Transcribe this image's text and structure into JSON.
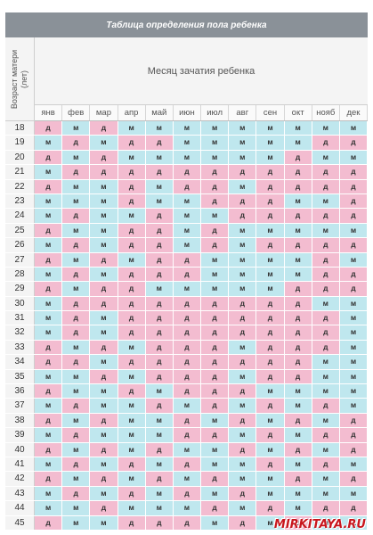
{
  "title": "Таблица определения пола ребенка",
  "vertical_label_line1": "Возраст матери",
  "vertical_label_line2": "(лет)",
  "header_label": "Месяц зачатия ребенка",
  "months": [
    "янв",
    "фев",
    "мар",
    "апр",
    "май",
    "июн",
    "июл",
    "авг",
    "сен",
    "окт",
    "нояб",
    "дек"
  ],
  "colors": {
    "boy": "#bfe7ee",
    "girl": "#f3bcd0",
    "header": "#8a9198"
  },
  "rows": [
    {
      "age": "18",
      "cells": [
        "д",
        "м",
        "д",
        "м",
        "м",
        "м",
        "м",
        "м",
        "м",
        "м",
        "м",
        "м"
      ]
    },
    {
      "age": "19",
      "cells": [
        "м",
        "д",
        "м",
        "д",
        "д",
        "м",
        "м",
        "м",
        "м",
        "м",
        "д",
        "д"
      ]
    },
    {
      "age": "20",
      "cells": [
        "д",
        "м",
        "д",
        "м",
        "м",
        "м",
        "м",
        "м",
        "м",
        "д",
        "м",
        "м"
      ]
    },
    {
      "age": "21",
      "cells": [
        "м",
        "д",
        "д",
        "д",
        "д",
        "д",
        "д",
        "д",
        "д",
        "д",
        "д",
        "д"
      ]
    },
    {
      "age": "22",
      "cells": [
        "д",
        "м",
        "м",
        "д",
        "м",
        "д",
        "д",
        "м",
        "д",
        "д",
        "д",
        "д"
      ]
    },
    {
      "age": "23",
      "cells": [
        "м",
        "м",
        "м",
        "д",
        "м",
        "м",
        "д",
        "д",
        "д",
        "м",
        "м",
        "д"
      ]
    },
    {
      "age": "24",
      "cells": [
        "м",
        "д",
        "м",
        "м",
        "д",
        "м",
        "м",
        "д",
        "д",
        "д",
        "д",
        "д"
      ]
    },
    {
      "age": "25",
      "cells": [
        "д",
        "м",
        "м",
        "д",
        "д",
        "м",
        "д",
        "м",
        "м",
        "м",
        "м",
        "м"
      ]
    },
    {
      "age": "26",
      "cells": [
        "м",
        "д",
        "м",
        "д",
        "д",
        "м",
        "д",
        "м",
        "д",
        "д",
        "д",
        "д"
      ]
    },
    {
      "age": "27",
      "cells": [
        "д",
        "м",
        "д",
        "м",
        "д",
        "д",
        "м",
        "м",
        "м",
        "м",
        "д",
        "м"
      ]
    },
    {
      "age": "28",
      "cells": [
        "м",
        "д",
        "м",
        "д",
        "д",
        "д",
        "м",
        "м",
        "м",
        "м",
        "д",
        "д"
      ]
    },
    {
      "age": "29",
      "cells": [
        "д",
        "м",
        "д",
        "д",
        "м",
        "м",
        "м",
        "м",
        "м",
        "д",
        "д",
        "д"
      ]
    },
    {
      "age": "30",
      "cells": [
        "м",
        "д",
        "д",
        "д",
        "д",
        "д",
        "д",
        "д",
        "д",
        "д",
        "м",
        "м"
      ]
    },
    {
      "age": "31",
      "cells": [
        "м",
        "д",
        "м",
        "д",
        "д",
        "д",
        "д",
        "д",
        "д",
        "д",
        "д",
        "м"
      ]
    },
    {
      "age": "32",
      "cells": [
        "м",
        "д",
        "м",
        "д",
        "д",
        "д",
        "д",
        "д",
        "д",
        "д",
        "д",
        "м"
      ]
    },
    {
      "age": "33",
      "cells": [
        "д",
        "м",
        "д",
        "м",
        "д",
        "д",
        "д",
        "м",
        "д",
        "д",
        "д",
        "м"
      ]
    },
    {
      "age": "34",
      "cells": [
        "д",
        "д",
        "м",
        "д",
        "д",
        "д",
        "д",
        "д",
        "д",
        "д",
        "м",
        "м"
      ]
    },
    {
      "age": "35",
      "cells": [
        "м",
        "м",
        "д",
        "м",
        "д",
        "д",
        "д",
        "м",
        "д",
        "д",
        "м",
        "м"
      ]
    },
    {
      "age": "36",
      "cells": [
        "д",
        "м",
        "м",
        "д",
        "м",
        "д",
        "д",
        "д",
        "м",
        "м",
        "м",
        "м"
      ]
    },
    {
      "age": "37",
      "cells": [
        "м",
        "д",
        "м",
        "м",
        "д",
        "м",
        "д",
        "м",
        "д",
        "м",
        "д",
        "м"
      ]
    },
    {
      "age": "38",
      "cells": [
        "д",
        "м",
        "д",
        "м",
        "м",
        "д",
        "м",
        "д",
        "м",
        "д",
        "м",
        "д"
      ]
    },
    {
      "age": "39",
      "cells": [
        "м",
        "д",
        "м",
        "м",
        "м",
        "д",
        "д",
        "м",
        "д",
        "м",
        "д",
        "д"
      ]
    },
    {
      "age": "40",
      "cells": [
        "д",
        "м",
        "д",
        "м",
        "д",
        "м",
        "м",
        "д",
        "м",
        "д",
        "м",
        "д"
      ]
    },
    {
      "age": "41",
      "cells": [
        "м",
        "д",
        "м",
        "д",
        "м",
        "д",
        "м",
        "м",
        "д",
        "м",
        "д",
        "м"
      ]
    },
    {
      "age": "42",
      "cells": [
        "д",
        "м",
        "д",
        "м",
        "д",
        "м",
        "д",
        "м",
        "м",
        "д",
        "м",
        "д"
      ]
    },
    {
      "age": "43",
      "cells": [
        "м",
        "д",
        "м",
        "д",
        "м",
        "д",
        "м",
        "д",
        "м",
        "м",
        "м",
        "м"
      ]
    },
    {
      "age": "44",
      "cells": [
        "м",
        "м",
        "д",
        "м",
        "м",
        "м",
        "д",
        "м",
        "д",
        "м",
        "д",
        "д"
      ]
    },
    {
      "age": "45",
      "cells": [
        "д",
        "м",
        "м",
        "д",
        "д",
        "д",
        "м",
        "д",
        "м",
        "д",
        "м",
        "м"
      ]
    }
  ],
  "watermark": "MIRKITAYA.RU"
}
